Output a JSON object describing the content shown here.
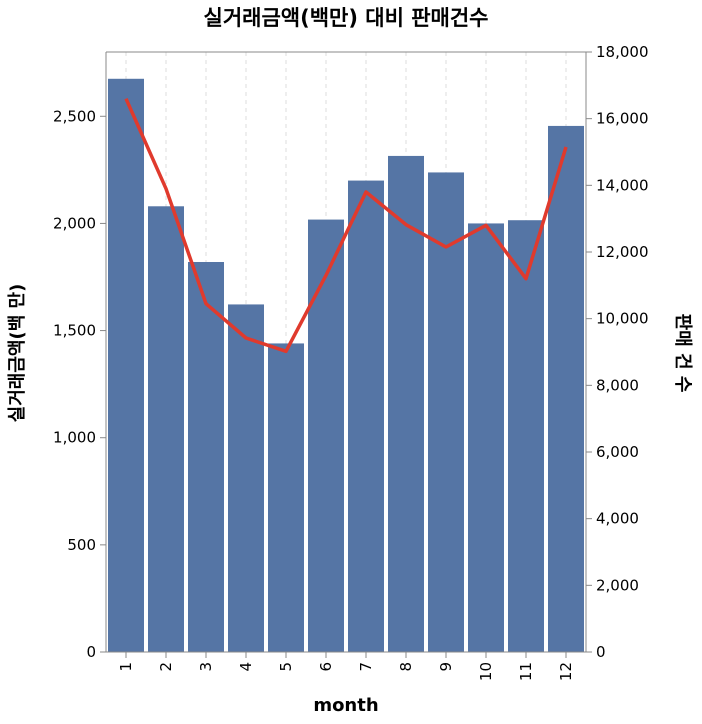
{
  "chart_data": {
    "type": "bar",
    "title": "실거래금액(백만) 대비 판매건수",
    "xlabel": "month",
    "ylabel": "실거래금액(백 만)",
    "y2label": "판매 건 수",
    "categories": [
      "1",
      "2",
      "3",
      "4",
      "5",
      "6",
      "7",
      "8",
      "9",
      "10",
      "11",
      "12"
    ],
    "series": [
      {
        "type": "bar",
        "axis": "left",
        "color": "#5575a5",
        "values": [
          2675,
          2080,
          1820,
          1622,
          1440,
          2018,
          2200,
          2315,
          2238,
          2000,
          2015,
          2455
        ]
      },
      {
        "type": "line",
        "axis": "right",
        "color": "#e03a2d",
        "values": [
          16600,
          13900,
          10450,
          9420,
          9020,
          11300,
          13800,
          12820,
          12150,
          12800,
          11200,
          15150
        ]
      }
    ],
    "ylim": [
      0,
      2800
    ],
    "y2lim": [
      0,
      18000
    ],
    "yticks": [
      "0",
      "500",
      "1,000",
      "1,500",
      "2,000",
      "2,500"
    ],
    "y2ticks": [
      "0",
      "2,000",
      "4,000",
      "6,000",
      "8,000",
      "10,000",
      "12,000",
      "14,000",
      "16,000",
      "18,000"
    ],
    "grid": "x-dashed"
  }
}
